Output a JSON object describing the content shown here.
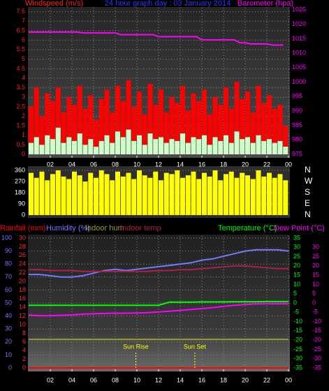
{
  "chart_data": [
    {
      "type": "bar",
      "title": "24 hour graph day : 03 January 2014",
      "ylabel": "Windspeed (m/s)",
      "y2label": "Barometer (hpa)",
      "x": [
        0,
        0.5,
        1,
        1.5,
        2,
        2.5,
        3,
        3.5,
        4,
        4.5,
        5,
        5.5,
        6,
        6.5,
        7,
        7.5,
        8,
        8.5,
        9,
        9.5,
        10,
        10.5,
        11,
        11.5,
        12,
        12.5,
        13,
        13.5,
        14,
        14.5,
        15,
        15.5,
        16,
        16.5,
        17,
        17.5,
        18,
        18.5,
        19,
        19.5,
        20,
        20.5,
        21,
        21.5,
        22,
        22.5,
        23,
        23.5
      ],
      "xlim": [
        0,
        24
      ],
      "xticks": [
        {
          "value": 2,
          "label": "02"
        },
        {
          "value": 4,
          "label": "04"
        },
        {
          "value": 6,
          "label": "06"
        },
        {
          "value": 8,
          "label": "08"
        },
        {
          "value": 10,
          "label": "10"
        },
        12,
        14,
        16,
        18,
        20,
        22,
        {
          "value": 24,
          "label": "00"
        }
      ],
      "ylim": [
        0,
        7.6
      ],
      "yticks": [
        0,
        0.5,
        1,
        1.5,
        2,
        2.5,
        3,
        3.5,
        4,
        4.5,
        5,
        5.5,
        6,
        6.5,
        7,
        7.5
      ],
      "y2lim": [
        975,
        1025
      ],
      "y2ticks": [
        975,
        980,
        985,
        990,
        995,
        1000,
        1005,
        1010,
        1015,
        1020,
        1025
      ],
      "grid": true,
      "series": [
        {
          "color": "#ff0000",
          "style": "bar",
          "axis": "y",
          "values": [
            2.5,
            3.5,
            2,
            3.2,
            2.8,
            3.5,
            2.2,
            3,
            2.6,
            3.6,
            2.4,
            3.1,
            1.8,
            2.9,
            3.4,
            2.2,
            3.6,
            2.8,
            3.9,
            2.5,
            3.3,
            2.1,
            3.7,
            2.6,
            3.4,
            2.2,
            3,
            2.7,
            3.6,
            2.3,
            3.2,
            2.8,
            3.4,
            2.1,
            3,
            2.6,
            3.5,
            2.4,
            3.8,
            2.9,
            3.3,
            2.2,
            3.6,
            2.7,
            3.1,
            2.4,
            2.6,
            1.5
          ]
        },
        {
          "color": "#ccffcc",
          "style": "bar",
          "axis": "y",
          "values": [
            0.6,
            0.9,
            0.5,
            1,
            0.8,
            1.4,
            0.6,
            0.9,
            0.7,
            1.1,
            0.5,
            0.8,
            0.4,
            0.7,
            1,
            0.6,
            1.2,
            0.9,
            1.3,
            0.7,
            1,
            0.5,
            1.1,
            0.8,
            0.9,
            0.6,
            0.8,
            0.7,
            1.1,
            0.6,
            0.9,
            0.8,
            1,
            0.5,
            0.9,
            0.7,
            1,
            0.6,
            1.2,
            0.8,
            0.9,
            0.6,
            1,
            0.7,
            0.8,
            0.6,
            0.7,
            0.4
          ]
        },
        {
          "color": "#ff00ff",
          "style": "line",
          "axis": "y2",
          "values": [
            1017.3,
            1017.3,
            1017.3,
            1017.3,
            1017.3,
            1017.3,
            1017.3,
            1017.3,
            1017.3,
            1017.3,
            1017.0,
            1017.0,
            1017.0,
            1017.0,
            1017.0,
            1017.0,
            1017.0,
            1016.4,
            1016.4,
            1016.4,
            1016.4,
            1016.4,
            1016.4,
            1016.4,
            1015.7,
            1015.7,
            1015.7,
            1015.7,
            1015.7,
            1015.7,
            1015.7,
            1015.7,
            1014.6,
            1014.6,
            1014.6,
            1014.6,
            1014.6,
            1014.6,
            1014.6,
            1013.6,
            1013.6,
            1013.2,
            1013.2,
            1013.2,
            1013.2,
            1012.8,
            1012.8,
            1012.8
          ]
        }
      ]
    },
    {
      "type": "bar",
      "x": [
        0,
        0.5,
        1,
        1.5,
        2,
        2.5,
        3,
        3.5,
        4,
        4.5,
        5,
        5.5,
        6,
        6.5,
        7,
        7.5,
        8,
        8.5,
        9,
        9.5,
        10,
        10.5,
        11,
        11.5,
        12,
        12.5,
        13,
        13.5,
        14,
        14.5,
        15,
        15.5,
        16,
        16.5,
        17,
        17.5,
        18,
        18.5,
        19,
        19.5,
        20,
        20.5,
        21,
        21.5,
        22,
        22.5,
        23,
        23.5
      ],
      "xlim": [
        0,
        24
      ],
      "ylim": [
        0,
        360
      ],
      "yticks": [
        0,
        90,
        180,
        270,
        360
      ],
      "y2lim": [
        0,
        360
      ],
      "y2ticks": [
        {
          "value": 360,
          "label": "N"
        },
        {
          "value": 270,
          "label": "W"
        },
        {
          "value": 180,
          "label": "S"
        },
        {
          "value": 90,
          "label": "E"
        },
        {
          "value": 0,
          "label": "N"
        }
      ],
      "grid": true,
      "series": [
        {
          "color": "#ffff00",
          "style": "bar",
          "axis": "y",
          "values": [
            340,
            300,
            350,
            280,
            330,
            360,
            310,
            290,
            350,
            320,
            270,
            340,
            300,
            360,
            330,
            280,
            350,
            310,
            340,
            290,
            360,
            320,
            300,
            350,
            280,
            340,
            330,
            360,
            300,
            320,
            350,
            290,
            340,
            310,
            360,
            280,
            330,
            350,
            300,
            340,
            320,
            290,
            360,
            310,
            340,
            300,
            330,
            280
          ]
        }
      ]
    },
    {
      "type": "line",
      "x": [
        0,
        1,
        2,
        3,
        4,
        5,
        6,
        7,
        8,
        9,
        10,
        11,
        12,
        13,
        14,
        15,
        16,
        17,
        18,
        19,
        20,
        21,
        22,
        23,
        24
      ],
      "xlim": [
        0,
        24
      ],
      "xticks": [
        {
          "value": 2,
          "label": "02"
        },
        {
          "value": 4,
          "label": "04"
        },
        {
          "value": 6,
          "label": "06"
        },
        {
          "value": 8,
          "label": "08"
        },
        {
          "value": 10,
          "label": "10"
        },
        12,
        14,
        16,
        18,
        20,
        22,
        {
          "value": 24,
          "label": "00"
        }
      ],
      "ylim": [
        0,
        100
      ],
      "yticks": [
        0,
        10,
        20,
        30,
        40,
        50,
        60,
        70,
        80,
        90,
        100
      ],
      "y2lim": [
        -35,
        35
      ],
      "y2ticks": [
        -35,
        -30,
        -25,
        -20,
        -15,
        -10,
        -5,
        0,
        5,
        10,
        15,
        20,
        25,
        30,
        35
      ],
      "y3lim": [
        0,
        30
      ],
      "y3ticks": [
        0,
        2,
        4,
        6,
        8,
        10,
        12,
        14,
        16,
        18,
        20,
        22,
        24,
        26,
        28,
        30
      ],
      "y4lim": [
        -35,
        35
      ],
      "y4ticks": [
        -35,
        -30,
        -25,
        -20,
        -15,
        -10,
        -5,
        0,
        5,
        10,
        15,
        20,
        25,
        30
      ],
      "grid": true,
      "series": [
        {
          "name": "Rainfall (mm)",
          "color": "#ff0000",
          "axis": "y3",
          "values": [
            0,
            0,
            0,
            0,
            0,
            0,
            0,
            0,
            0,
            0,
            0,
            0,
            0,
            0,
            0,
            0,
            0,
            0,
            0,
            0,
            0,
            0,
            0,
            0,
            0
          ]
        },
        {
          "name": "Humidity (%)",
          "color": "#7777ff",
          "axis": "y",
          "values": [
            72,
            72,
            71,
            70,
            70,
            71,
            73,
            75,
            76,
            75,
            76,
            77,
            78,
            79,
            80,
            81,
            83,
            84,
            86,
            88,
            90,
            91,
            91,
            91,
            90
          ]
        },
        {
          "name": "Indoor hum",
          "color": "#999933",
          "axis": "y",
          "values": [
            22,
            22,
            22,
            22,
            22,
            22,
            22,
            22,
            22,
            22,
            22,
            22,
            22,
            22,
            22,
            22,
            22,
            22,
            22,
            22,
            22,
            22,
            22,
            22,
            22
          ]
        },
        {
          "name": "Indoor temp",
          "color": "#aa2244",
          "axis": "y2",
          "values": [
            18,
            18,
            17.5,
            17.5,
            17.5,
            17,
            17,
            17,
            17,
            17,
            17,
            17,
            17.5,
            17.5,
            18,
            18,
            18.5,
            19,
            19.5,
            20,
            20,
            19.5,
            19,
            18.5,
            18.5
          ]
        },
        {
          "name": "Temperature (°C)",
          "color": "#00ff00",
          "axis": "y2",
          "values": [
            -1.2,
            -1.2,
            -1.2,
            -1.2,
            -1.2,
            -1.2,
            -1.2,
            -1.2,
            -1.2,
            -1.2,
            -1.2,
            -1.2,
            -1.2,
            0.5,
            0.5,
            0.5,
            0.6,
            0.6,
            0.6,
            0.7,
            0.7,
            0.7,
            0.8,
            0.8,
            0.8
          ]
        },
        {
          "name": "Dew Point (°C)",
          "color": "#ff00ff",
          "axis": "y4",
          "values": [
            -6.5,
            -6.8,
            -6.8,
            -6.6,
            -6.4,
            -6,
            -5.8,
            -5.6,
            -5.5,
            -5.5,
            -5.4,
            -5.2,
            -4.8,
            -4.4,
            -4,
            -3.5,
            -3,
            -2.5,
            -1.8,
            -1.2,
            -0.8,
            -0.5,
            -0.4,
            -0.4,
            -0.4
          ]
        }
      ],
      "annotations": [
        {
          "text": "Sun Rise",
          "x": 9.9
        },
        {
          "text": "Sun Set",
          "x": 15.35
        }
      ]
    }
  ]
}
